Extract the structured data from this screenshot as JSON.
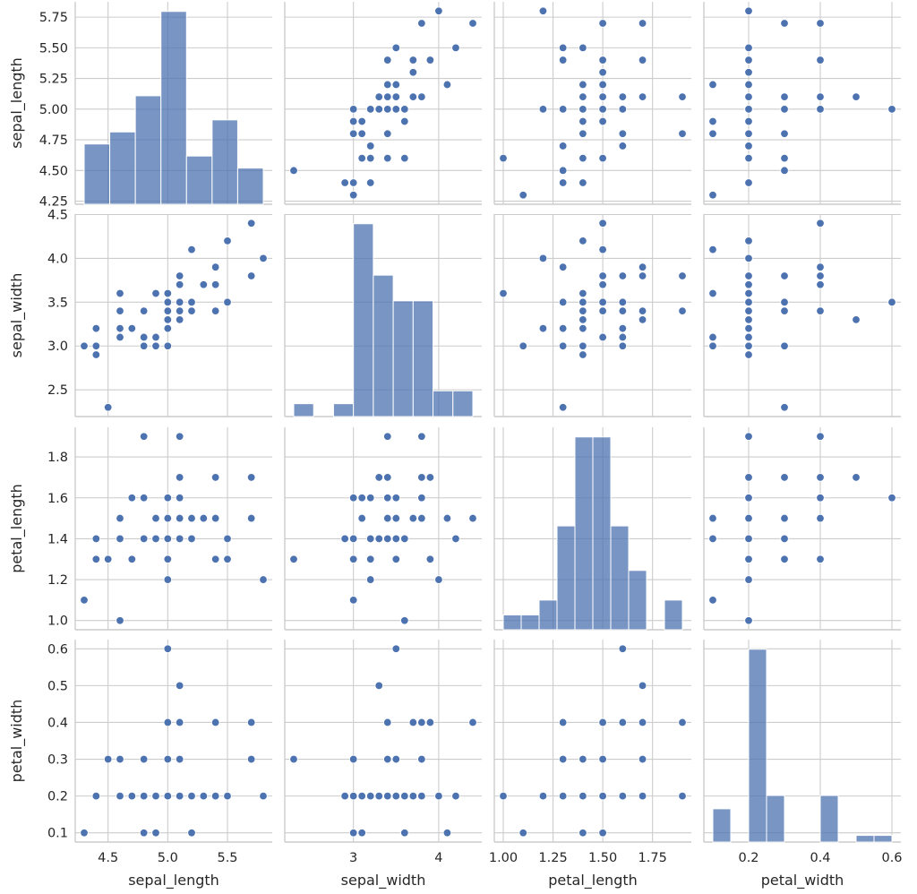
{
  "chart_data": {
    "type": "scatter",
    "kind": "pairplot",
    "variables": [
      "sepal_length",
      "sepal_width",
      "petal_length",
      "petal_width"
    ],
    "axis_labels": [
      "sepal_length",
      "sepal_width",
      "petal_length",
      "petal_width"
    ],
    "grid": true,
    "color": "#4c72b0",
    "ranges": {
      "sepal_length": [
        4.225,
        5.875
      ],
      "sepal_width": [
        2.195,
        4.505
      ],
      "petal_length": [
        0.955,
        1.945
      ],
      "petal_width": [
        0.075,
        0.625
      ]
    },
    "y_ticks": {
      "sepal_length": [
        "4.25",
        "4.50",
        "4.75",
        "5.00",
        "5.25",
        "5.50",
        "5.75"
      ],
      "sepal_width": [
        "2.5",
        "3.0",
        "3.5",
        "4.0",
        "4.5"
      ],
      "petal_length": [
        "1.0",
        "1.2",
        "1.4",
        "1.6",
        "1.8"
      ],
      "petal_width": [
        "0.1",
        "0.2",
        "0.3",
        "0.4",
        "0.5",
        "0.6"
      ]
    },
    "x_ticks": {
      "sepal_length": [
        "4.5",
        "5.0",
        "5.5"
      ],
      "sepal_width": [
        "3",
        "4"
      ],
      "petal_length": [
        "1.00",
        "1.25",
        "1.50",
        "1.75"
      ],
      "petal_width": [
        "0.2",
        "0.4",
        "0.6"
      ]
    },
    "histograms": {
      "sepal_length": {
        "range": [
          4.3,
          5.8
        ],
        "counts": [
          5,
          6,
          9,
          16,
          4,
          7,
          3
        ]
      },
      "sepal_width": {
        "range": [
          2.3,
          4.4
        ],
        "counts": [
          1,
          0,
          1,
          15,
          11,
          9,
          9,
          2,
          2
        ]
      },
      "petal_length": {
        "range": [
          1.0,
          1.9
        ],
        "counts": [
          1,
          1,
          2,
          7,
          13,
          13,
          7,
          4,
          0,
          2
        ]
      },
      "petal_width": {
        "range": [
          0.1,
          0.6
        ],
        "counts": [
          5,
          0,
          29,
          7,
          0,
          0,
          7,
          0,
          1,
          1
        ]
      }
    },
    "data": {
      "sepal_length": [
        5.1,
        4.9,
        4.7,
        4.6,
        5.0,
        5.4,
        4.6,
        5.0,
        4.4,
        4.9,
        5.4,
        4.8,
        4.8,
        4.3,
        5.8,
        5.7,
        5.4,
        5.1,
        5.7,
        5.1,
        5.4,
        5.1,
        4.6,
        5.1,
        4.8,
        5.0,
        5.0,
        5.2,
        5.2,
        4.7,
        4.8,
        5.4,
        5.2,
        5.5,
        4.9,
        5.0,
        5.5,
        4.9,
        4.4,
        5.1,
        5.0,
        4.5,
        4.4,
        5.0,
        5.1,
        4.8,
        5.1,
        4.6,
        5.3,
        5.0
      ],
      "sepal_width": [
        3.5,
        3.0,
        3.2,
        3.1,
        3.6,
        3.9,
        3.4,
        3.4,
        2.9,
        3.1,
        3.7,
        3.4,
        3.0,
        3.0,
        4.0,
        4.4,
        3.9,
        3.5,
        3.8,
        3.8,
        3.4,
        3.7,
        3.6,
        3.3,
        3.4,
        3.0,
        3.4,
        3.5,
        3.4,
        3.2,
        3.1,
        3.4,
        4.1,
        4.2,
        3.1,
        3.2,
        3.5,
        3.6,
        3.0,
        3.4,
        3.5,
        2.3,
        3.2,
        3.5,
        3.8,
        3.0,
        3.8,
        3.2,
        3.7,
        3.3
      ],
      "petal_length": [
        1.4,
        1.4,
        1.3,
        1.5,
        1.4,
        1.7,
        1.4,
        1.5,
        1.4,
        1.5,
        1.5,
        1.6,
        1.4,
        1.1,
        1.2,
        1.5,
        1.3,
        1.4,
        1.7,
        1.5,
        1.7,
        1.5,
        1.0,
        1.7,
        1.9,
        1.6,
        1.6,
        1.5,
        1.4,
        1.6,
        1.6,
        1.5,
        1.5,
        1.4,
        1.5,
        1.2,
        1.3,
        1.4,
        1.3,
        1.5,
        1.3,
        1.3,
        1.3,
        1.6,
        1.9,
        1.4,
        1.6,
        1.4,
        1.5,
        1.4
      ],
      "petal_width": [
        0.2,
        0.2,
        0.2,
        0.2,
        0.2,
        0.4,
        0.3,
        0.2,
        0.2,
        0.1,
        0.2,
        0.2,
        0.1,
        0.1,
        0.2,
        0.4,
        0.4,
        0.3,
        0.3,
        0.3,
        0.2,
        0.4,
        0.2,
        0.5,
        0.2,
        0.2,
        0.4,
        0.2,
        0.2,
        0.2,
        0.2,
        0.4,
        0.1,
        0.2,
        0.2,
        0.2,
        0.2,
        0.1,
        0.2,
        0.2,
        0.3,
        0.3,
        0.2,
        0.6,
        0.4,
        0.3,
        0.2,
        0.2,
        0.2,
        0.2
      ]
    }
  }
}
